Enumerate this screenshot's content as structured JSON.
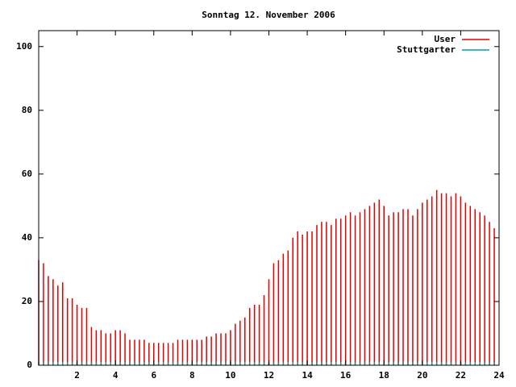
{
  "chart_data": {
    "type": "impulse",
    "title": "Sonntag 12. November 2006",
    "x": [
      0,
      0.25,
      0.5,
      0.75,
      1,
      1.25,
      1.5,
      1.75,
      2,
      2.25,
      2.5,
      2.75,
      3,
      3.25,
      3.5,
      3.75,
      4,
      4.25,
      4.5,
      4.75,
      5,
      5.25,
      5.5,
      5.75,
      6,
      6.25,
      6.5,
      6.75,
      7,
      7.25,
      7.5,
      7.75,
      8,
      8.25,
      8.5,
      8.75,
      9,
      9.25,
      9.5,
      9.75,
      10,
      10.25,
      10.5,
      10.75,
      11,
      11.25,
      11.5,
      11.75,
      12,
      12.25,
      12.5,
      12.75,
      13,
      13.25,
      13.5,
      13.75,
      14,
      14.25,
      14.5,
      14.75,
      15,
      15.25,
      15.5,
      15.75,
      16,
      16.25,
      16.5,
      16.75,
      17,
      17.25,
      17.5,
      17.75,
      18,
      18.25,
      18.5,
      18.75,
      19,
      19.25,
      19.5,
      19.75,
      20,
      20.25,
      20.5,
      20.75,
      21,
      21.25,
      21.5,
      21.75,
      22,
      22.25,
      22.5,
      22.75,
      23,
      23.25,
      23.5,
      23.75
    ],
    "series": [
      {
        "name": "User",
        "color": "#e00000",
        "values": [
          33,
          32,
          28,
          27,
          25,
          26,
          21,
          21,
          19,
          18,
          18,
          12,
          11,
          11,
          10,
          10,
          11,
          11,
          10,
          8,
          8,
          8,
          8,
          7,
          7,
          7,
          7,
          7,
          7,
          8,
          8,
          8,
          8,
          8,
          8,
          9,
          9,
          10,
          10,
          10,
          11,
          13,
          14,
          15,
          18,
          19,
          19,
          22,
          27,
          32,
          33,
          35,
          36,
          40,
          42,
          41,
          42,
          42,
          44,
          45,
          45,
          44,
          46,
          46,
          47,
          48,
          47,
          48,
          49,
          50,
          51,
          52,
          50,
          47,
          48,
          48,
          49,
          49,
          47,
          49,
          51,
          52,
          53,
          55,
          54,
          54,
          53,
          54,
          53,
          51,
          50,
          49,
          48,
          47,
          45,
          43
        ]
      },
      {
        "name": "Stuttgarter",
        "color": "#00a0a0",
        "values": [
          1,
          1,
          1,
          1,
          1,
          1,
          1,
          1,
          1,
          1,
          1,
          1,
          1,
          1,
          1,
          1,
          1,
          1,
          1,
          1,
          1,
          1,
          1,
          1,
          1,
          1,
          1,
          1,
          1,
          1,
          1,
          1,
          1,
          1,
          1,
          1,
          1,
          1,
          1,
          1,
          1,
          1,
          1,
          1,
          1,
          1,
          1,
          1,
          1,
          1,
          1,
          1,
          1,
          1,
          1,
          1,
          1,
          1,
          1,
          1,
          1,
          1,
          1,
          1,
          1,
          1,
          1,
          1,
          1,
          1,
          1,
          1,
          1,
          1,
          1,
          1,
          1,
          1,
          1,
          1,
          1,
          1,
          1,
          1,
          1,
          1,
          1,
          1,
          1,
          1,
          1,
          1,
          1,
          1,
          1,
          1
        ]
      }
    ],
    "xlim": [
      0,
      24
    ],
    "xticks": [
      2,
      4,
      6,
      8,
      10,
      12,
      14,
      16,
      18,
      20,
      22,
      24
    ],
    "ylim": [
      0,
      105
    ],
    "yticks": [
      0,
      20,
      40,
      60,
      80,
      100
    ],
    "legend": "top-right"
  }
}
